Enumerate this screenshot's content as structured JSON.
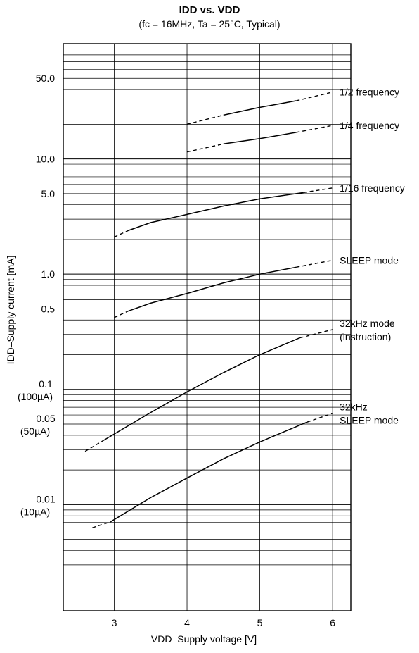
{
  "chart_data": {
    "type": "line",
    "title": "IDD vs. VDD",
    "subtitle": "(fc = 16MHz, Ta = 25°C, Typical)",
    "xlabel": "VDD–Supply voltage [V]",
    "ylabel": "IDD–Supply current  [mA]",
    "y_scale": "log",
    "grid": true,
    "xlim": [
      2.3,
      6.25
    ],
    "ylim": [
      0.0012,
      100
    ],
    "x_ticks": [
      3,
      4,
      5,
      6
    ],
    "x_tick_labels": [
      "3",
      "4",
      "5",
      "6"
    ],
    "y_ticks": [
      {
        "value": 50,
        "label": "50.0"
      },
      {
        "value": 10,
        "label": "10.0"
      },
      {
        "value": 5,
        "label": "5.0"
      },
      {
        "value": 1,
        "label": "1.0"
      },
      {
        "value": 0.5,
        "label": "0.5"
      },
      {
        "value": 0.1,
        "label": "0.1",
        "label2": "(100µA)"
      },
      {
        "value": 0.05,
        "label": "0.05",
        "label2": "(50µA)"
      },
      {
        "value": 0.01,
        "label": "0.01",
        "label2": "(10µA)"
      }
    ],
    "series": [
      {
        "name": "1/2 frequency",
        "label_lines": [
          "1/2 frequency"
        ],
        "dashed_start": [
          [
            4.0,
            20
          ],
          [
            4.5,
            24
          ]
        ],
        "solid": [
          [
            4.5,
            24
          ],
          [
            5.0,
            28
          ],
          [
            5.5,
            32
          ]
        ],
        "dashed_end": [
          [
            5.5,
            32
          ],
          [
            6.0,
            38
          ]
        ]
      },
      {
        "name": "1/4 frequency",
        "label_lines": [
          "1/4 frequency"
        ],
        "dashed_start": [
          [
            4.0,
            11.5
          ],
          [
            4.5,
            13.5
          ]
        ],
        "solid": [
          [
            4.5,
            13.5
          ],
          [
            5.0,
            15
          ],
          [
            5.5,
            17
          ]
        ],
        "dashed_end": [
          [
            5.5,
            17
          ],
          [
            6.0,
            19.5
          ]
        ]
      },
      {
        "name": "1/16 frequency",
        "label_lines": [
          "1/16 frequency"
        ],
        "dashed_start": [
          [
            3.0,
            2.1
          ],
          [
            3.2,
            2.4
          ]
        ],
        "solid": [
          [
            3.2,
            2.4
          ],
          [
            3.5,
            2.8
          ],
          [
            4.0,
            3.3
          ],
          [
            4.5,
            3.9
          ],
          [
            5.0,
            4.5
          ],
          [
            5.6,
            5.1
          ]
        ],
        "dashed_end": [
          [
            5.6,
            5.1
          ],
          [
            6.0,
            5.6
          ]
        ]
      },
      {
        "name": "SLEEP mode",
        "label_lines": [
          "SLEEP mode"
        ],
        "dashed_start": [
          [
            3.0,
            0.42
          ],
          [
            3.2,
            0.48
          ]
        ],
        "solid": [
          [
            3.2,
            0.48
          ],
          [
            3.5,
            0.56
          ],
          [
            4.0,
            0.68
          ],
          [
            4.5,
            0.84
          ],
          [
            5.0,
            1.0
          ],
          [
            5.5,
            1.15
          ]
        ],
        "dashed_end": [
          [
            5.5,
            1.15
          ],
          [
            6.0,
            1.32
          ]
        ]
      },
      {
        "name": "32kHz mode (instruction)",
        "label_lines": [
          "32kHz mode",
          "(instruction)"
        ],
        "dashed_start": [
          [
            2.6,
            0.029
          ],
          [
            2.85,
            0.036
          ]
        ],
        "solid": [
          [
            2.85,
            0.036
          ],
          [
            3.0,
            0.041
          ],
          [
            3.5,
            0.063
          ],
          [
            4.0,
            0.095
          ],
          [
            4.5,
            0.14
          ],
          [
            5.0,
            0.2
          ],
          [
            5.55,
            0.28
          ]
        ],
        "dashed_end": [
          [
            5.55,
            0.28
          ],
          [
            6.0,
            0.33
          ]
        ]
      },
      {
        "name": "32kHz SLEEP mode",
        "label_lines": [
          "32kHz",
          "SLEEP mode"
        ],
        "dashed_start": [
          [
            2.7,
            0.0063
          ],
          [
            2.95,
            0.0071
          ]
        ],
        "solid": [
          [
            2.95,
            0.0071
          ],
          [
            3.5,
            0.0115
          ],
          [
            4.0,
            0.017
          ],
          [
            4.5,
            0.025
          ],
          [
            5.0,
            0.035
          ],
          [
            5.65,
            0.052
          ]
        ],
        "dashed_end": [
          [
            5.65,
            0.052
          ],
          [
            6.0,
            0.062
          ]
        ]
      }
    ]
  }
}
